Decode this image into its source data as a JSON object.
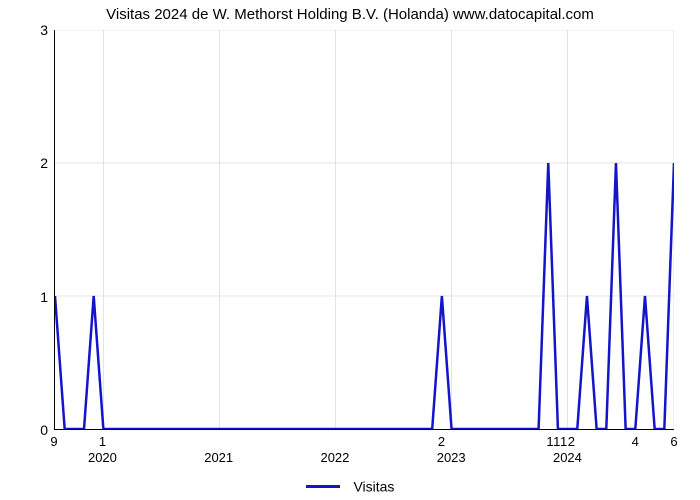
{
  "chart": {
    "type": "line",
    "title": "Visitas 2024 de W. Methorst Holding B.V. (Holanda) www.datocapital.com",
    "title_fontsize": 15,
    "title_color": "#000000",
    "background_color": "#ffffff",
    "plot_background": "#ffffff",
    "line_color": "#1414c8",
    "line_width": 2.5,
    "grid_color": "#c8c8c8",
    "grid_width": 0.5,
    "axis_color": "#000000",
    "ylim": [
      0,
      3
    ],
    "yticks": [
      0,
      1,
      2,
      3
    ],
    "ytick_fontsize": 14,
    "xlim_months": [
      0,
      64
    ],
    "x_year_labels": [
      {
        "label": "2020",
        "month": 5
      },
      {
        "label": "2021",
        "month": 17
      },
      {
        "label": "2022",
        "month": 29
      },
      {
        "label": "2023",
        "month": 41
      },
      {
        "label": "2024",
        "month": 53
      }
    ],
    "x_minor_labels": [
      {
        "label": "9",
        "month": 0
      },
      {
        "label": "1",
        "month": 5
      },
      {
        "label": "2",
        "month": 40
      },
      {
        "label": "1",
        "month": 51.2
      },
      {
        "label": "1",
        "month": 51.9
      },
      {
        "label": "1",
        "month": 52.6
      },
      {
        "label": "2",
        "month": 53.4
      },
      {
        "label": "4",
        "month": 60
      },
      {
        "label": "6",
        "month": 64
      }
    ],
    "x_vertical_gridlines_months": [
      0,
      5,
      17,
      29,
      41,
      53,
      64
    ],
    "legend_label": "Visitas",
    "legend_fontsize": 14,
    "data_points": [
      {
        "m": 0,
        "v": 1
      },
      {
        "m": 1,
        "v": 0
      },
      {
        "m": 3,
        "v": 0
      },
      {
        "m": 4,
        "v": 1
      },
      {
        "m": 5,
        "v": 0
      },
      {
        "m": 39,
        "v": 0
      },
      {
        "m": 40,
        "v": 1
      },
      {
        "m": 41,
        "v": 0
      },
      {
        "m": 50,
        "v": 0
      },
      {
        "m": 51,
        "v": 2
      },
      {
        "m": 52,
        "v": 0
      },
      {
        "m": 54,
        "v": 0
      },
      {
        "m": 55,
        "v": 1
      },
      {
        "m": 56,
        "v": 0
      },
      {
        "m": 57,
        "v": 0
      },
      {
        "m": 58,
        "v": 2
      },
      {
        "m": 59,
        "v": 0
      },
      {
        "m": 60,
        "v": 0
      },
      {
        "m": 61,
        "v": 1
      },
      {
        "m": 62,
        "v": 0
      },
      {
        "m": 63,
        "v": 0
      },
      {
        "m": 64,
        "v": 2
      }
    ]
  }
}
